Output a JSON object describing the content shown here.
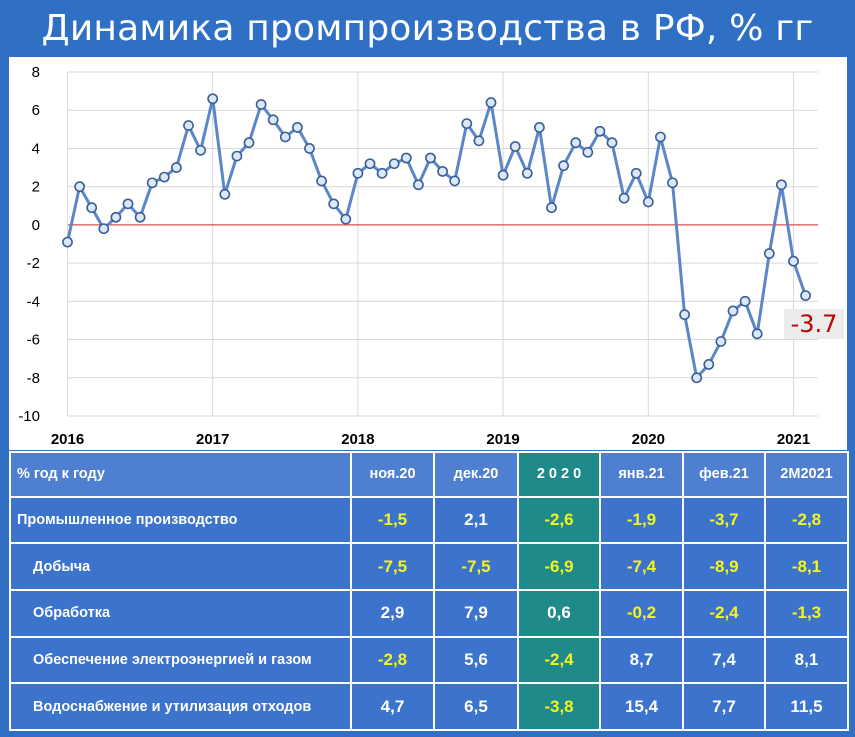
{
  "title": "Динамика промпроизводства в РФ, % гг",
  "chart_data": {
    "type": "line",
    "title": "Динамика промпроизводства в РФ, % гг",
    "ylim": [
      -10,
      8
    ],
    "y_ticks": [
      8,
      6,
      4,
      2,
      0,
      -2,
      -4,
      -6,
      -8,
      -10
    ],
    "x_tick_labels": [
      "2016",
      "2017",
      "2018",
      "2019",
      "2020",
      "2021"
    ],
    "grid": true,
    "reference_line": 0,
    "start_month": "2016-01",
    "series": [
      {
        "values": [
          -0.9,
          2.0,
          0.9,
          -0.2,
          0.4,
          1.1,
          0.4,
          2.2,
          2.5,
          3.0,
          5.2,
          3.9,
          6.6,
          1.6,
          3.6,
          4.3,
          6.3,
          5.5,
          4.6,
          5.1,
          4.0,
          2.3,
          1.1,
          0.3,
          2.7,
          3.2,
          2.7,
          3.2,
          3.5,
          2.1,
          3.5,
          2.8,
          2.3,
          5.3,
          4.4,
          6.4,
          2.6,
          4.1,
          2.7,
          5.1,
          0.9,
          3.1,
          4.3,
          3.8,
          4.9,
          4.3,
          1.4,
          2.7,
          1.2,
          4.6,
          2.2,
          -4.7,
          -8.0,
          -7.3,
          -6.1,
          -4.5,
          -4.0,
          -5.7,
          -1.5,
          2.1,
          -1.9,
          -3.7
        ]
      }
    ],
    "last_value_label": "-3.7",
    "colors": {
      "line": "#5b86c7",
      "marker_fill": "#dce8f7",
      "zero_line": "#d9534f",
      "grid": "#d9d9d9"
    }
  },
  "table": {
    "header": [
      "% год к году",
      "ноя.20",
      "дек.20",
      "2 0 2 0",
      "янв.21",
      "фев.21",
      "2М2021"
    ],
    "rows": [
      {
        "label": "Промышленное производство",
        "indent": false,
        "values": [
          "-1,5",
          "2,1",
          "-2,6",
          "-1,9",
          "-3,7",
          "-2,8"
        ]
      },
      {
        "label": "Добыча",
        "indent": true,
        "values": [
          "-7,5",
          "-7,5",
          "-6,9",
          "-7,4",
          "-8,9",
          "-8,1"
        ]
      },
      {
        "label": "Обработка",
        "indent": true,
        "values": [
          "2,9",
          "7,9",
          "0,6",
          "-0,2",
          "-2,4",
          "-1,3"
        ]
      },
      {
        "label": "Обеспечение электроэнергией и газом",
        "indent": true,
        "values": [
          "-2,8",
          "5,6",
          "-2,4",
          "8,7",
          "7,4",
          "8,1"
        ]
      },
      {
        "label": "Водоснабжение и утилизация отходов",
        "indent": true,
        "values": [
          "4,7",
          "6,5",
          "-3,8",
          "15,4",
          "7,7",
          "11,5"
        ]
      }
    ],
    "colors": {
      "header_bg": "#4f7fd0",
      "row_bg": "#3c73cc",
      "highlight_bg": "#1f8a8a",
      "negative_text": "#f4f61a",
      "text": "#ffffff"
    }
  }
}
